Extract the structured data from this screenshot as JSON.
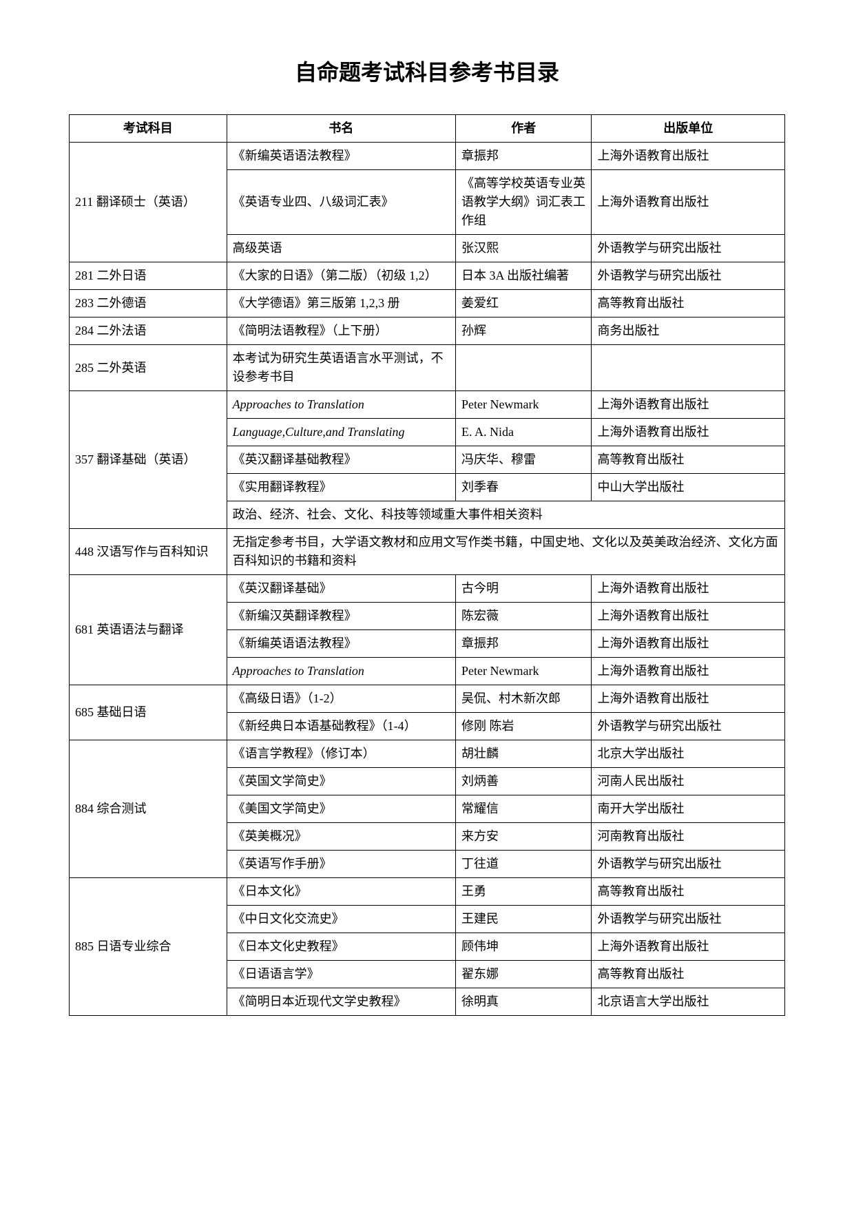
{
  "title": "自命题考试科目参考书目录",
  "headers": {
    "subject": "考试科目",
    "book": "书名",
    "author": "作者",
    "publisher": "出版单位"
  },
  "rows": [
    {
      "subject": "211 翻译硕士（英语）",
      "subject_rowspan": 3,
      "book": "《新编英语语法教程》",
      "author": "章振邦",
      "publisher": "上海外语教育出版社"
    },
    {
      "book": "《英语专业四、八级词汇表》",
      "author": "《高等学校英语专业英语教学大纲》词汇表工作组",
      "publisher": "上海外语教育出版社"
    },
    {
      "book": "高级英语",
      "author": "张汉熙",
      "publisher": "外语教学与研究出版社"
    },
    {
      "subject": "281 二外日语",
      "book": "《大家的日语》（第二版）（初级 1,2）",
      "author": "日本 3A 出版社编著",
      "publisher": "外语教学与研究出版社"
    },
    {
      "subject": "283 二外德语",
      "book": "《大学德语》第三版第 1,2,3 册",
      "author": "姜爱红",
      "publisher": "高等教育出版社"
    },
    {
      "subject": "284 二外法语",
      "book": "《简明法语教程》（上下册）",
      "author": "孙辉",
      "publisher": "商务出版社"
    },
    {
      "subject": "285 二外英语",
      "book": "本考试为研究生英语语言水平测试，不设参考书目",
      "author": "",
      "publisher": ""
    },
    {
      "subject": "357 翻译基础（英语）",
      "subject_rowspan": 5,
      "book": "Approaches to Translation",
      "book_italic": true,
      "author": "Peter Newmark",
      "author_latin": true,
      "publisher": "上海外语教育出版社"
    },
    {
      "book": "Language,Culture,and Translating",
      "book_italic": true,
      "author": "E. A. Nida",
      "author_latin": true,
      "publisher": "上海外语教育出版社"
    },
    {
      "book": "《英汉翻译基础教程》",
      "author": "冯庆华、穆雷",
      "publisher": "高等教育出版社"
    },
    {
      "book": "《实用翻译教程》",
      "author": "刘季春",
      "publisher": "中山大学出版社"
    },
    {
      "book_colspan": 3,
      "book": "政治、经济、社会、文化、科技等领域重大事件相关资料"
    },
    {
      "subject": "448 汉语写作与百科知识",
      "book_colspan": 3,
      "book": "无指定参考书目，大学语文教材和应用文写作类书籍，中国史地、文化以及英美政治经济、文化方面百科知识的书籍和资料"
    },
    {
      "subject": "681 英语语法与翻译",
      "subject_rowspan": 4,
      "book": "《英汉翻译基础》",
      "author": "古今明",
      "publisher": "上海外语教育出版社"
    },
    {
      "book": "《新编汉英翻译教程》",
      "author": "陈宏薇",
      "publisher": "上海外语教育出版社"
    },
    {
      "book": "《新编英语语法教程》",
      "author": "章振邦",
      "publisher": "上海外语教育出版社"
    },
    {
      "book": "Approaches to Translation",
      "book_italic": true,
      "author": "Peter Newmark",
      "author_latin": true,
      "publisher": "上海外语教育出版社"
    },
    {
      "subject": "685 基础日语",
      "subject_rowspan": 2,
      "book": "《高级日语》（1-2）",
      "author": "吴侃、村木新次郎",
      "publisher": "上海外语教育出版社"
    },
    {
      "book": "《新经典日本语基础教程》（1-4）",
      "author": "修刚 陈岩",
      "publisher": "外语教学与研究出版社"
    },
    {
      "subject": "884 综合测试",
      "subject_rowspan": 5,
      "book": "《语言学教程》（修订本）",
      "author": "胡壮麟",
      "publisher": "北京大学出版社"
    },
    {
      "book": "《英国文学简史》",
      "author": "刘炳善",
      "publisher": "河南人民出版社"
    },
    {
      "book": "《美国文学简史》",
      "author": "常耀信",
      "publisher": "南开大学出版社"
    },
    {
      "book": "《英美概况》",
      "author": "来方安",
      "publisher": "河南教育出版社"
    },
    {
      "book": "《英语写作手册》",
      "author": "丁往道",
      "publisher": "外语教学与研究出版社"
    },
    {
      "subject": "885 日语专业综合",
      "subject_rowspan": 5,
      "book": "《日本文化》",
      "author": "王勇",
      "publisher": "高等教育出版社"
    },
    {
      "book": "《中日文化交流史》",
      "author": "王建民",
      "publisher": "外语教学与研究出版社"
    },
    {
      "book": "《日本文化史教程》",
      "author": "顾伟坤",
      "publisher": "上海外语教育出版社"
    },
    {
      "book": "《日语语言学》",
      "author": "翟东娜",
      "publisher": "高等教育出版社"
    },
    {
      "book": "《简明日本近现代文学史教程》",
      "author": "徐明真",
      "publisher": "北京语言大学出版社"
    }
  ]
}
